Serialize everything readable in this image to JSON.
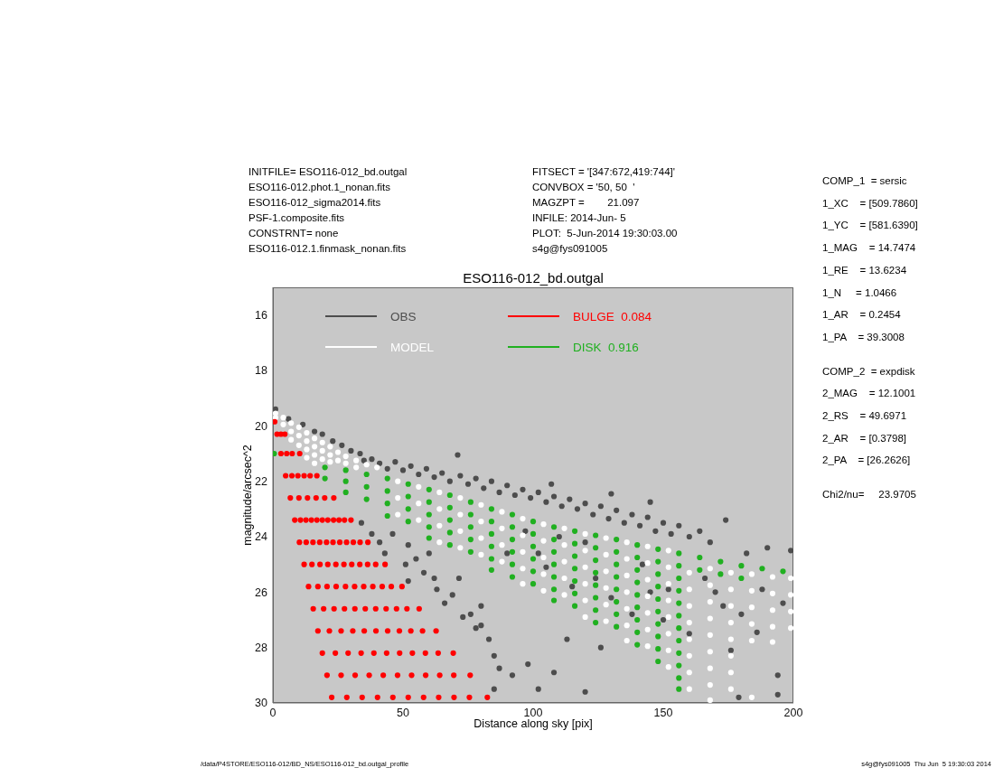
{
  "chart_data": {
    "type": "scatter",
    "title": "ESO116-012_bd.outgal",
    "xlabel": "Distance along sky [pix]",
    "ylabel": "magnitude/arcsec^2",
    "xlim": [
      0,
      200
    ],
    "ylim": [
      30,
      15
    ],
    "xticks": [
      0,
      50,
      100,
      150,
      200
    ],
    "yticks": [
      16,
      18,
      20,
      22,
      24,
      26,
      28,
      30
    ],
    "legend": "top left",
    "marker": "circle",
    "annotations": [
      "INITFILE= ESO116-012_bd.outgal",
      "ESO116-012.phot.1_nonan.fits",
      "ESO116-012_sigma2014.fits",
      "PSF-1.composite.fits",
      "CONSTRNT= none",
      "ESO116-012.1.finmask_nonan.fits",
      "FITSECT = '[347:672,419:744]'",
      "CONVBOX = '50, 50  '",
      "MAGZPT =        21.097",
      "INFILE: 2014-Jun- 5",
      "PLOT:  5-Jun-2014 19:30:03.00",
      "s4g@fys091005",
      "COMP_1  = sersic",
      "1_XC    = [509.7860]",
      "1_YC    = [581.6390]",
      "1_MAG    = 14.7474",
      "1_RE    = 13.6234",
      "1_N     = 1.0466",
      "1_AR    = 0.2454",
      "1_PA    = 39.3008",
      "COMP_2  = expdisk",
      "2_MAG    = 12.1001",
      "2_RS    = 49.6971",
      "2_AR    = [0.3798]",
      "2_PA    = [26.2626]",
      "Chi2/nu=     23.9705",
      "/data/P4STORE/ESO116-012/BD_NS/ESO116-012_bd.outgal_profile",
      "s4g@fys091005  Thu Jun  5 19:30:03 2014"
    ],
    "series": [
      {
        "name": "OBS",
        "color": "#4d4d4d",
        "x": [
          1,
          6,
          11.5,
          16,
          19,
          23,
          26.5,
          30,
          33.5,
          35,
          38,
          41,
          44,
          47,
          50,
          53,
          56,
          59,
          62,
          65,
          68,
          71,
          72,
          75,
          78,
          81,
          84,
          87,
          90,
          93,
          96,
          99,
          102,
          105,
          107,
          108,
          111,
          114,
          117,
          120,
          123,
          126,
          129,
          130,
          132,
          135,
          138,
          141,
          144,
          145,
          147,
          150,
          153,
          156,
          160,
          164,
          168,
          174,
          182,
          190,
          199,
          34,
          38,
          41,
          43,
          46,
          51,
          52,
          52,
          55,
          58,
          60,
          62,
          63,
          66,
          69,
          71.5,
          73,
          76,
          78,
          80,
          80,
          83,
          85,
          87,
          85,
          92,
          98,
          102,
          108,
          113,
          120,
          126,
          90,
          102,
          105,
          110,
          115,
          120,
          130,
          138,
          142,
          145,
          150,
          152,
          160,
          166,
          170,
          173,
          176,
          179,
          180,
          186,
          188,
          194,
          194,
          196,
          97,
          124
        ],
        "values": [
          19.4,
          19.75,
          19.95,
          20.2,
          20.3,
          20.55,
          20.7,
          20.9,
          21.0,
          21.25,
          21.2,
          21.35,
          21.55,
          21.3,
          21.6,
          21.45,
          21.75,
          21.55,
          21.85,
          21.7,
          22.0,
          21.05,
          21.8,
          22.1,
          21.9,
          22.25,
          22.0,
          22.4,
          22.15,
          22.5,
          22.3,
          22.6,
          22.4,
          22.75,
          22.1,
          22.55,
          22.9,
          22.65,
          23.0,
          22.8,
          23.2,
          22.9,
          23.35,
          22.45,
          23.05,
          23.5,
          23.2,
          23.6,
          23.3,
          22.75,
          23.8,
          23.5,
          23.9,
          23.6,
          24.0,
          23.8,
          24.2,
          23.4,
          24.6,
          24.4,
          24.5,
          23.5,
          23.9,
          24.2,
          24.6,
          23.9,
          25.0,
          25.6,
          24.3,
          24.8,
          25.3,
          24.6,
          25.5,
          25.9,
          26.4,
          26.1,
          25.5,
          26.9,
          26.8,
          27.3,
          26.5,
          27.2,
          27.7,
          28.3,
          28.75,
          29.5,
          29.0,
          28.6,
          29.5,
          28.9,
          27.7,
          29.6,
          28.0,
          24.6,
          24.6,
          25.1,
          24.0,
          25.8,
          24.2,
          26.2,
          26.8,
          25.0,
          26.0,
          27.0,
          25.9,
          27.5,
          25.5,
          26.0,
          26.5,
          28.1,
          29.8,
          26.8,
          27.45,
          25.9,
          29.0,
          29.7,
          26.4,
          23.8,
          25.5
        ]
      },
      {
        "name": "MODEL",
        "color": "#ffffff",
        "x": [
          1,
          1,
          4,
          4,
          7,
          7,
          7,
          10,
          10,
          10,
          13,
          13,
          13,
          13,
          16,
          16,
          16,
          16,
          19,
          19,
          19,
          22,
          22,
          22,
          25,
          25,
          28,
          28,
          32,
          32,
          36,
          40,
          48,
          48,
          48,
          56,
          56,
          56,
          64,
          64,
          64,
          64,
          72,
          72,
          72,
          72,
          80,
          80,
          80,
          80,
          88,
          88,
          88,
          88,
          96,
          96,
          96,
          96,
          96,
          104,
          104,
          104,
          104,
          104,
          112,
          112,
          112,
          112,
          112,
          120,
          120,
          120,
          120,
          120,
          120,
          128,
          128,
          128,
          128,
          128,
          128,
          136,
          136,
          136,
          136,
          136,
          136,
          136,
          144,
          144,
          144,
          144,
          144,
          144,
          144,
          152,
          152,
          152,
          152,
          152,
          152,
          152,
          152,
          160,
          160,
          160,
          160,
          160,
          160,
          160,
          160,
          168,
          168,
          168,
          168,
          168,
          168,
          168,
          168,
          168,
          176,
          176,
          176,
          176,
          176,
          176,
          176,
          176,
          184,
          184,
          184,
          184,
          184,
          184,
          192,
          192,
          192,
          192,
          192,
          199,
          199,
          199,
          199
        ],
        "values": [
          19.55,
          19.7,
          19.7,
          19.95,
          19.9,
          20.2,
          20.5,
          20.05,
          20.35,
          20.7,
          20.25,
          20.55,
          20.85,
          21.15,
          20.45,
          20.75,
          21.05,
          21.35,
          20.6,
          20.9,
          21.2,
          20.75,
          21.05,
          21.3,
          20.95,
          21.25,
          21.1,
          21.35,
          21.25,
          21.5,
          21.4,
          21.5,
          22.0,
          22.6,
          23.2,
          22.2,
          22.8,
          23.4,
          22.4,
          23.0,
          23.6,
          24.2,
          22.6,
          23.2,
          23.8,
          24.4,
          22.85,
          23.45,
          24.05,
          24.65,
          23.1,
          23.7,
          24.3,
          24.9,
          23.35,
          23.95,
          24.55,
          25.15,
          25.7,
          23.55,
          24.15,
          24.75,
          25.35,
          25.95,
          23.7,
          24.3,
          24.9,
          25.5,
          26.1,
          23.9,
          24.5,
          25.1,
          25.7,
          26.3,
          26.9,
          24.05,
          24.65,
          25.25,
          25.85,
          26.45,
          27.05,
          24.2,
          24.8,
          25.4,
          26.0,
          26.6,
          27.2,
          27.75,
          24.35,
          24.95,
          25.55,
          26.15,
          26.75,
          27.35,
          27.95,
          24.5,
          25.1,
          25.7,
          26.3,
          26.9,
          27.5,
          28.1,
          28.7,
          25.3,
          25.9,
          26.5,
          27.1,
          27.7,
          28.3,
          28.9,
          29.5,
          25.15,
          25.75,
          26.35,
          26.95,
          27.55,
          28.15,
          28.75,
          29.35,
          29.9,
          25.3,
          25.9,
          26.5,
          27.1,
          27.7,
          28.3,
          28.9,
          29.5,
          25.35,
          25.95,
          26.55,
          27.15,
          27.75,
          29.8,
          25.45,
          26.05,
          26.65,
          27.25,
          27.8,
          25.5,
          26.1,
          26.7,
          27.3
        ]
      },
      {
        "name": "BULGE  0.084",
        "color": "#ff0000",
        "x": [
          0.7,
          1.6,
          3.1,
          4.6,
          3.1,
          5.3,
          7.4,
          10.3,
          4.9,
          7.3,
          9.6,
          12.0,
          14.3,
          16.9,
          6.7,
          10.0,
          13.3,
          16.6,
          19.9,
          23.4,
          8.4,
          10.6,
          12.7,
          14.8,
          16.9,
          19.0,
          21.1,
          23.3,
          25.4,
          27.5,
          30.0,
          10.2,
          12.8,
          15.4,
          18.0,
          20.6,
          23.1,
          25.7,
          28.3,
          30.9,
          33.5,
          36.5,
          12.0,
          15.0,
          18.1,
          21.1,
          24.2,
          27.3,
          30.3,
          33.4,
          36.4,
          39.5,
          43.1,
          13.7,
          17.3,
          20.8,
          24.3,
          27.9,
          31.4,
          34.9,
          38.4,
          42.0,
          45.5,
          49.6,
          15.5,
          19.5,
          23.5,
          27.5,
          31.5,
          35.5,
          39.5,
          43.5,
          47.5,
          51.5,
          56.2,
          17.3,
          21.7,
          26.2,
          30.7,
          35.1,
          39.6,
          44.1,
          48.6,
          53.0,
          57.5,
          62.7,
          19.0,
          24.0,
          28.9,
          33.9,
          38.8,
          43.7,
          48.7,
          53.6,
          58.6,
          63.5,
          69.3,
          20.8,
          26.2,
          31.6,
          37.0,
          42.4,
          47.9,
          53.3,
          58.7,
          64.1,
          69.5,
          75.8,
          22.6,
          28.4,
          34.3,
          40.2,
          46.1,
          52.0,
          57.9,
          63.7,
          69.6,
          75.5,
          82.4
        ],
        "values": [
          19.85,
          20.3,
          20.3,
          20.3,
          21.0,
          21.0,
          21.0,
          21.0,
          21.8,
          21.8,
          21.8,
          21.8,
          21.8,
          21.8,
          22.6,
          22.6,
          22.6,
          22.6,
          22.6,
          22.6,
          23.4,
          23.4,
          23.4,
          23.4,
          23.4,
          23.4,
          23.4,
          23.4,
          23.4,
          23.4,
          23.4,
          24.2,
          24.2,
          24.2,
          24.2,
          24.2,
          24.2,
          24.2,
          24.2,
          24.2,
          24.2,
          24.2,
          25.0,
          25.0,
          25.0,
          25.0,
          25.0,
          25.0,
          25.0,
          25.0,
          25.0,
          25.0,
          25.0,
          25.8,
          25.8,
          25.8,
          25.8,
          25.8,
          25.8,
          25.8,
          25.8,
          25.8,
          25.8,
          25.8,
          26.6,
          26.6,
          26.6,
          26.6,
          26.6,
          26.6,
          26.6,
          26.6,
          26.6,
          26.6,
          26.6,
          27.4,
          27.4,
          27.4,
          27.4,
          27.4,
          27.4,
          27.4,
          27.4,
          27.4,
          27.4,
          27.4,
          28.2,
          28.2,
          28.2,
          28.2,
          28.2,
          28.2,
          28.2,
          28.2,
          28.2,
          28.2,
          28.2,
          29.0,
          29.0,
          29.0,
          29.0,
          29.0,
          29.0,
          29.0,
          29.0,
          29.0,
          29.0,
          29.0,
          29.8,
          29.8,
          29.8,
          29.8,
          29.8,
          29.8,
          29.8,
          29.8,
          29.8,
          29.8,
          29.8
        ]
      },
      {
        "name": "DISK  0.916",
        "color": "#20b020",
        "x": [
          0.5,
          20,
          20,
          28,
          28,
          28,
          36,
          36,
          36,
          44,
          44,
          44,
          44,
          52,
          52,
          52,
          52,
          60,
          60,
          60,
          60,
          60,
          68,
          68,
          68,
          68,
          68,
          76,
          76,
          76,
          76,
          76,
          84,
          84,
          84,
          84,
          84,
          84,
          92,
          92,
          92,
          92,
          92,
          92,
          100,
          100,
          100,
          100,
          100,
          100,
          108,
          108,
          108,
          108,
          108,
          108,
          108,
          116,
          116,
          116,
          116,
          116,
          116,
          116,
          124,
          124,
          124,
          124,
          124,
          124,
          124,
          124,
          132,
          132,
          132,
          132,
          132,
          132,
          132,
          132,
          140,
          140,
          140,
          140,
          140,
          140,
          140,
          140,
          140,
          148,
          148,
          148,
          148,
          148,
          148,
          148,
          148,
          148,
          148,
          156,
          156,
          156,
          156,
          156,
          156,
          156,
          156,
          156,
          156,
          156,
          156,
          164,
          164,
          172,
          172,
          180,
          180,
          188,
          196
        ],
        "values": [
          21.0,
          21.5,
          21.9,
          21.6,
          22.0,
          22.4,
          21.75,
          22.2,
          22.65,
          21.9,
          22.35,
          22.8,
          23.25,
          22.1,
          22.55,
          23.0,
          23.45,
          22.3,
          22.75,
          23.2,
          23.65,
          24.05,
          22.5,
          22.95,
          23.4,
          23.85,
          24.3,
          22.75,
          23.2,
          23.65,
          24.1,
          24.55,
          23.0,
          23.45,
          23.9,
          24.35,
          24.8,
          25.2,
          23.2,
          23.65,
          24.1,
          24.55,
          25.0,
          25.45,
          23.45,
          23.9,
          24.35,
          24.8,
          25.25,
          25.7,
          23.65,
          24.1,
          24.55,
          25.0,
          25.45,
          25.9,
          26.3,
          23.8,
          24.25,
          24.7,
          25.15,
          25.6,
          26.05,
          26.5,
          23.95,
          24.4,
          24.85,
          25.3,
          25.75,
          26.2,
          26.65,
          27.1,
          24.1,
          24.55,
          25.0,
          25.45,
          25.9,
          26.35,
          26.8,
          27.25,
          24.3,
          24.75,
          25.2,
          25.65,
          26.1,
          26.55,
          27.0,
          27.45,
          27.9,
          24.45,
          24.9,
          25.35,
          25.8,
          26.25,
          26.7,
          27.15,
          27.6,
          28.05,
          28.5,
          24.6,
          25.05,
          25.5,
          25.95,
          26.4,
          26.85,
          27.3,
          27.75,
          28.2,
          28.65,
          29.1,
          29.5,
          24.75,
          25.2,
          24.9,
          25.35,
          25.05,
          25.5,
          25.15,
          25.25
        ]
      }
    ]
  }
}
